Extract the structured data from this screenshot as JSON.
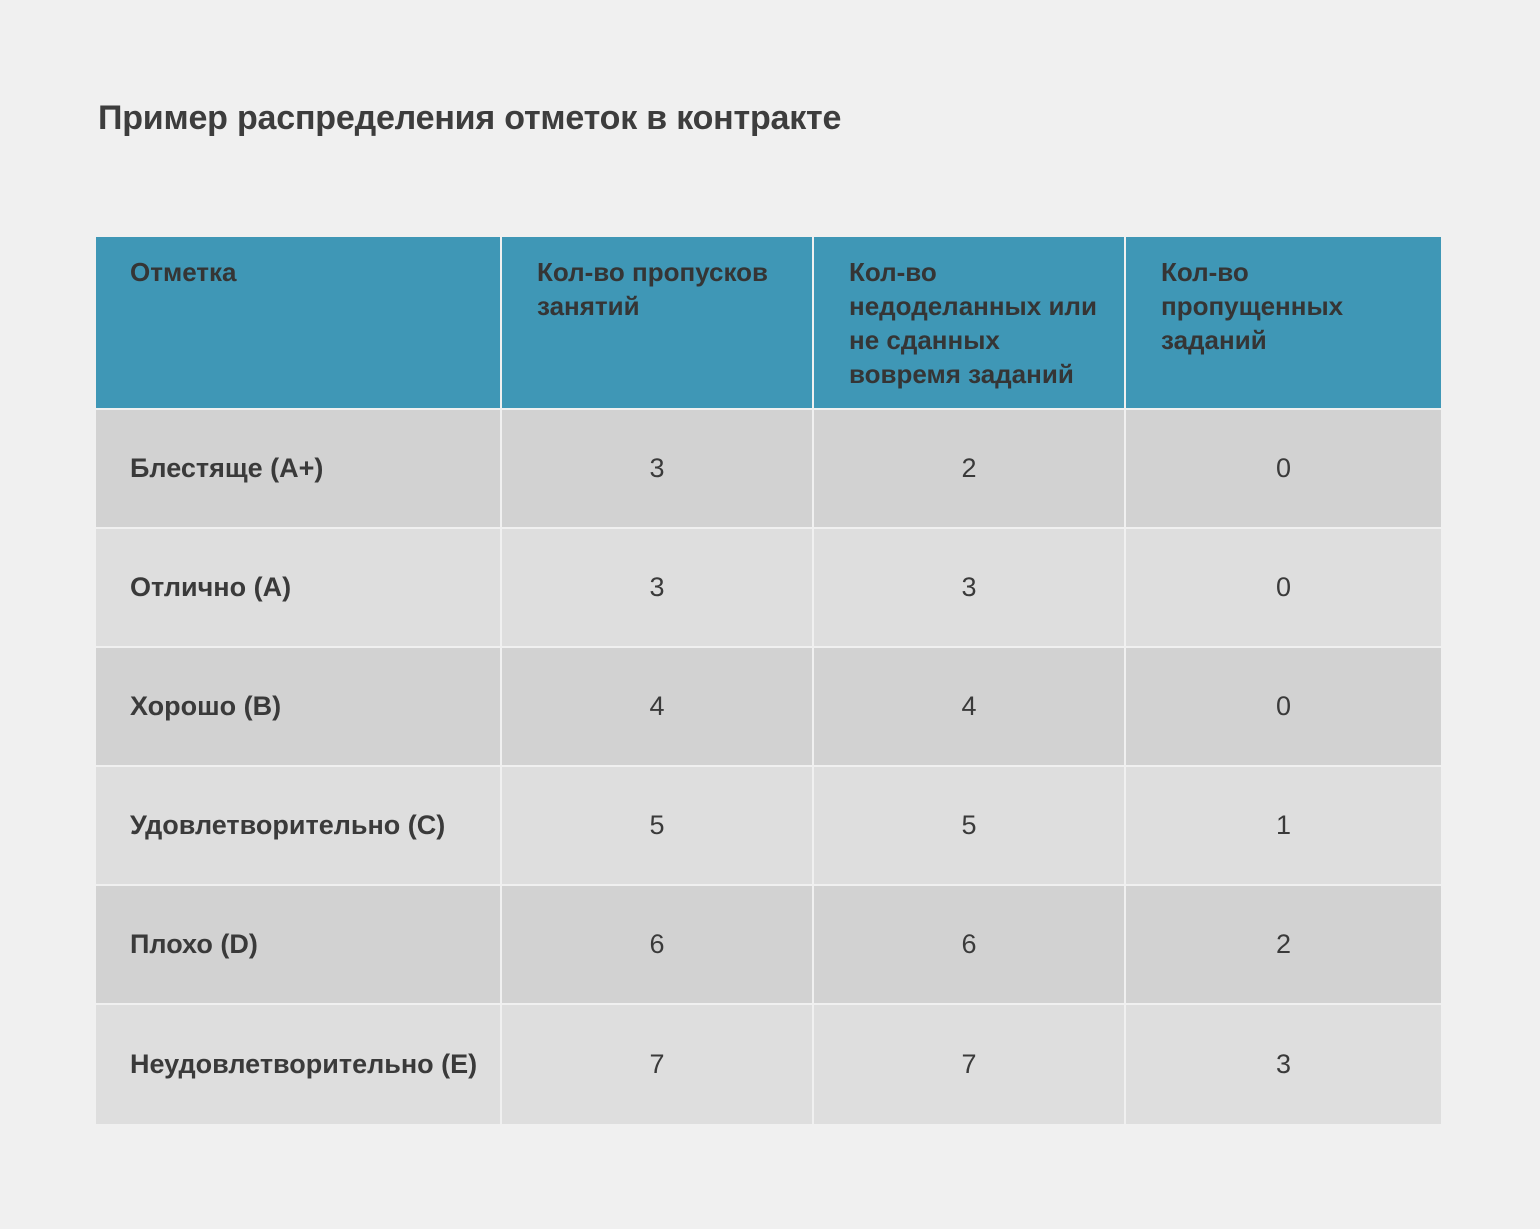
{
  "title": "Пример распределения отметок в контракте",
  "table": {
    "headers": [
      "Отметка",
      "Кол-во пропусков занятий",
      "Кол-во недоделанных или не сданных вовремя заданий",
      "Кол-во пропущенных заданий"
    ],
    "rows": [
      {
        "grade": "Блестяще (A+)",
        "absences": "3",
        "late_tasks": "2",
        "missed_tasks": "0"
      },
      {
        "grade": "Отлично (A)",
        "absences": "3",
        "late_tasks": "3",
        "missed_tasks": "0"
      },
      {
        "grade": "Хорошо (B)",
        "absences": "4",
        "late_tasks": "4",
        "missed_tasks": "0"
      },
      {
        "grade": "Удовлетворительно (C)",
        "absences": "5",
        "late_tasks": "5",
        "missed_tasks": "1"
      },
      {
        "grade": "Плохо (D)",
        "absences": "6",
        "late_tasks": "6",
        "missed_tasks": "2"
      },
      {
        "grade": "Неудовлетворительно (E)",
        "absences": "7",
        "late_tasks": "7",
        "missed_tasks": "3"
      }
    ]
  },
  "colors": {
    "background": "#f0f0f0",
    "header": "#3f97b6",
    "row_dark": "#d2d2d2",
    "row_light": "#dedede",
    "text": "#3a3a3a"
  }
}
